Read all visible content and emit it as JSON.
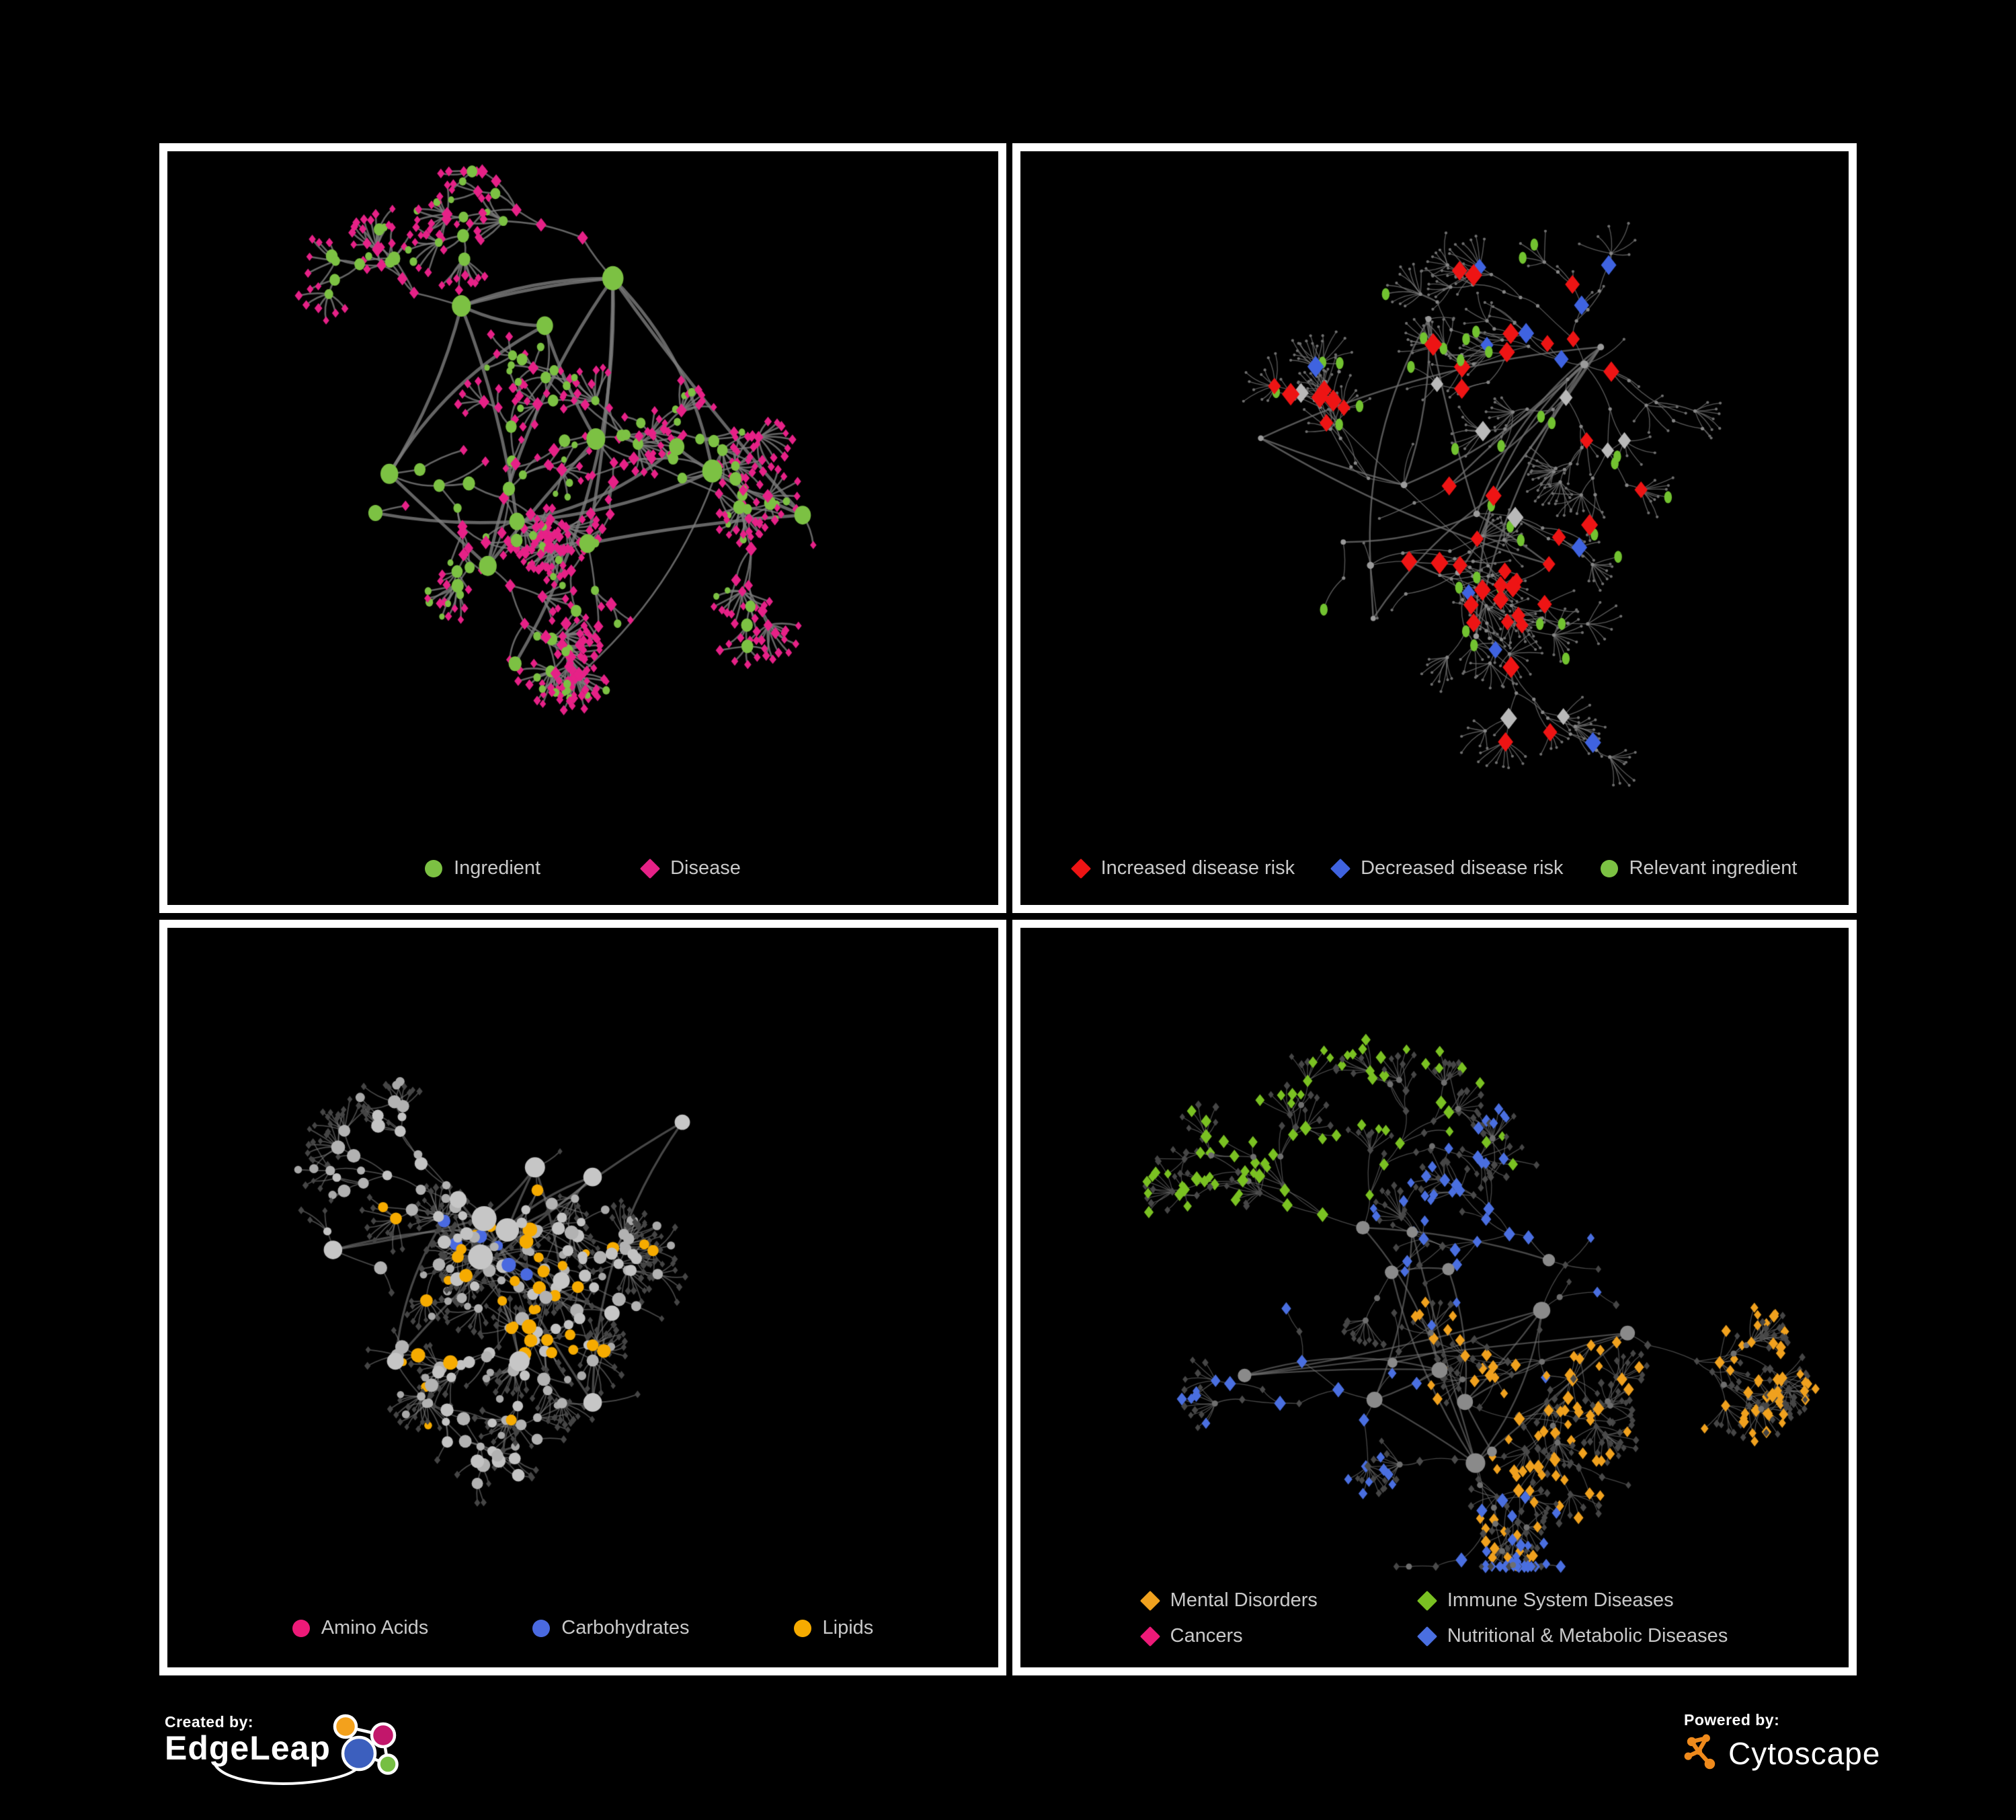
{
  "page": {
    "background": "#000000",
    "panel_border_color": "#ffffff"
  },
  "panels": [
    {
      "id": "ingredients-diseases",
      "legend": {
        "items": [
          {
            "label": "Ingredient",
            "shape": "circle",
            "color": "#7cc143"
          },
          {
            "label": "Disease",
            "shape": "diamond",
            "color": "#e62187"
          }
        ]
      },
      "network": {
        "style": "tl",
        "seed": 1101,
        "hubs": 13,
        "nodes": 620,
        "fan_prob": 0.42,
        "max_depth": 5,
        "edge_color": "rgba(125,125,125,0.8)",
        "edge_width": 2.6,
        "palette": {
          "ingredient": "#7cc143",
          "disease": "#e62187"
        }
      }
    },
    {
      "id": "disease-risk",
      "legend": {
        "items": [
          {
            "label": "Increased disease risk",
            "shape": "diamond",
            "color": "#ee1414"
          },
          {
            "label": "Decreased disease risk",
            "shape": "diamond",
            "color": "#3f63e0"
          },
          {
            "label": "Relevant ingredient",
            "shape": "circle",
            "color": "#7cc143"
          }
        ]
      },
      "network": {
        "style": "tr",
        "seed": 2202,
        "hubs": 14,
        "nodes": 690,
        "fan_prob": 0.36,
        "max_depth": 5,
        "edge_color": "rgba(115,115,115,0.75)",
        "edge_width": 1.4,
        "palette": {
          "base": "#8a8a8a",
          "increased": "#ee1414",
          "decreased": "#3f63e0",
          "neutral": "#b9b9b9",
          "ingredient": "#72c230"
        },
        "highlights": {
          "increased": 46,
          "decreased": 11,
          "neutral": 9,
          "ingredient": 36
        }
      }
    },
    {
      "id": "nutrient-categories",
      "legend": {
        "items": [
          {
            "label": "Amino Acids",
            "shape": "circle",
            "color": "#ed1a78"
          },
          {
            "label": "Carbohydrates",
            "shape": "circle",
            "color": "#4a6ae0"
          },
          {
            "label": "Lipids",
            "shape": "circle",
            "color": "#f6ab00"
          }
        ]
      },
      "network": {
        "style": "bl",
        "seed": 3303,
        "hubs": 13,
        "nodes": 640,
        "fan_prob": 0.4,
        "max_depth": 5,
        "edge_color": "rgba(130,130,130,0.55)",
        "edge_width": 1.8,
        "palette": {
          "hub": "#c6c6c6",
          "mid": "#b2b2b2",
          "leaf": "#454545",
          "amino": "#ed1a78",
          "carb": "#4a6ae0",
          "lipid": "#f6ab00"
        },
        "bias_weights": [
          [
            "lipid",
            0.26
          ],
          [
            "amino",
            0.15
          ],
          [
            "carb",
            0.07
          ],
          [
            "none",
            0.52
          ]
        ]
      }
    },
    {
      "id": "disease-categories",
      "legend": {
        "items": [
          {
            "label": "Mental Disorders",
            "shape": "diamond",
            "color": "#f0a11e"
          },
          {
            "label": "Immune System Diseases",
            "shape": "diamond",
            "color": "#7ac122"
          },
          {
            "label": "Cancers",
            "shape": "diamond",
            "color": "#ed1a78"
          },
          {
            "label": "Nutritional & Metabolic Diseases",
            "shape": "diamond",
            "color": "#4a6fe0"
          }
        ]
      },
      "network": {
        "style": "br",
        "seed": 4404,
        "hubs": 14,
        "nodes": 740,
        "fan_prob": 0.42,
        "max_depth": 5,
        "edge_color": "rgba(118,118,118,0.6)",
        "edge_width": 1.3,
        "palette": {
          "hub": "#8a8a8a",
          "leaf": "#464646",
          "mental": "#f0a11e",
          "immune": "#7ac122",
          "cancer": "#ed1a78",
          "nutri": "#4a6fe0"
        },
        "bias_weights": [
          [
            "mental",
            0.18
          ],
          [
            "cancer",
            0.18
          ],
          [
            "nutri",
            0.24
          ],
          [
            "immune",
            0.05
          ],
          [
            "none",
            0.35
          ]
        ]
      }
    }
  ],
  "footer": {
    "created_by": {
      "label": "Created by:",
      "brand": "EdgeLeap"
    },
    "powered_by": {
      "label": "Powered by:",
      "brand": "Cytoscape"
    },
    "edgeleap_colors": {
      "blue": "#3c5fbe",
      "orange": "#f3a11c",
      "pink": "#c2176b",
      "green": "#76bf43"
    },
    "cytoscape_color": "#ef8a1c"
  }
}
